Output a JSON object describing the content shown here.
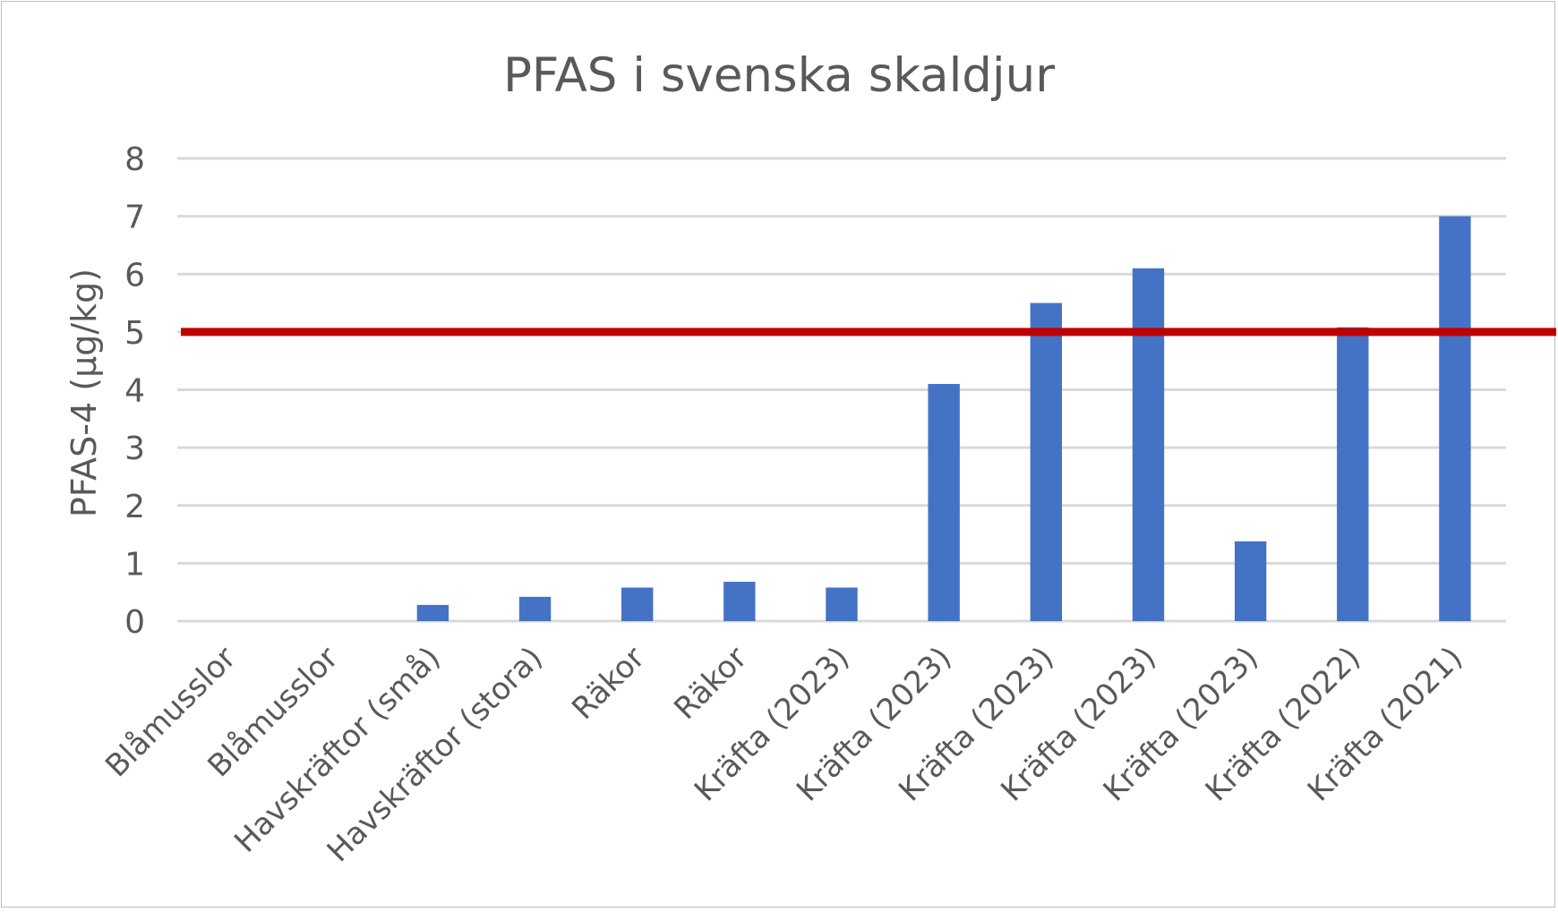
{
  "chart_data": {
    "type": "bar",
    "title": "PFAS i svenska skaldjur",
    "xlabel": "",
    "ylabel": "PFAS-4 (µg/kg)",
    "ylim": [
      0,
      8
    ],
    "yticks": [
      "0",
      "1",
      "2",
      "3",
      "4",
      "5",
      "6",
      "7",
      "8"
    ],
    "grid": true,
    "legend": "none",
    "categories": [
      "Blåmusslor",
      "Blåmusslor",
      "Havskräftor (små)",
      "Havskräftor (stora)",
      "Räkor",
      "Räkor",
      "Kräfta (2023)",
      "Kräfta (2023)",
      "Kräfta (2023)",
      "Kräfta (2023)",
      "Kräfta (2023)",
      "Kräfta (2022)",
      "Kräfta (2021)"
    ],
    "values": [
      0,
      0,
      0.28,
      0.42,
      0.58,
      0.68,
      0.58,
      4.1,
      5.5,
      6.1,
      1.38,
      5.08,
      7.0
    ],
    "bar_color": "#4472c4",
    "reference_line": {
      "value": 5,
      "color": "#c00000"
    }
  }
}
